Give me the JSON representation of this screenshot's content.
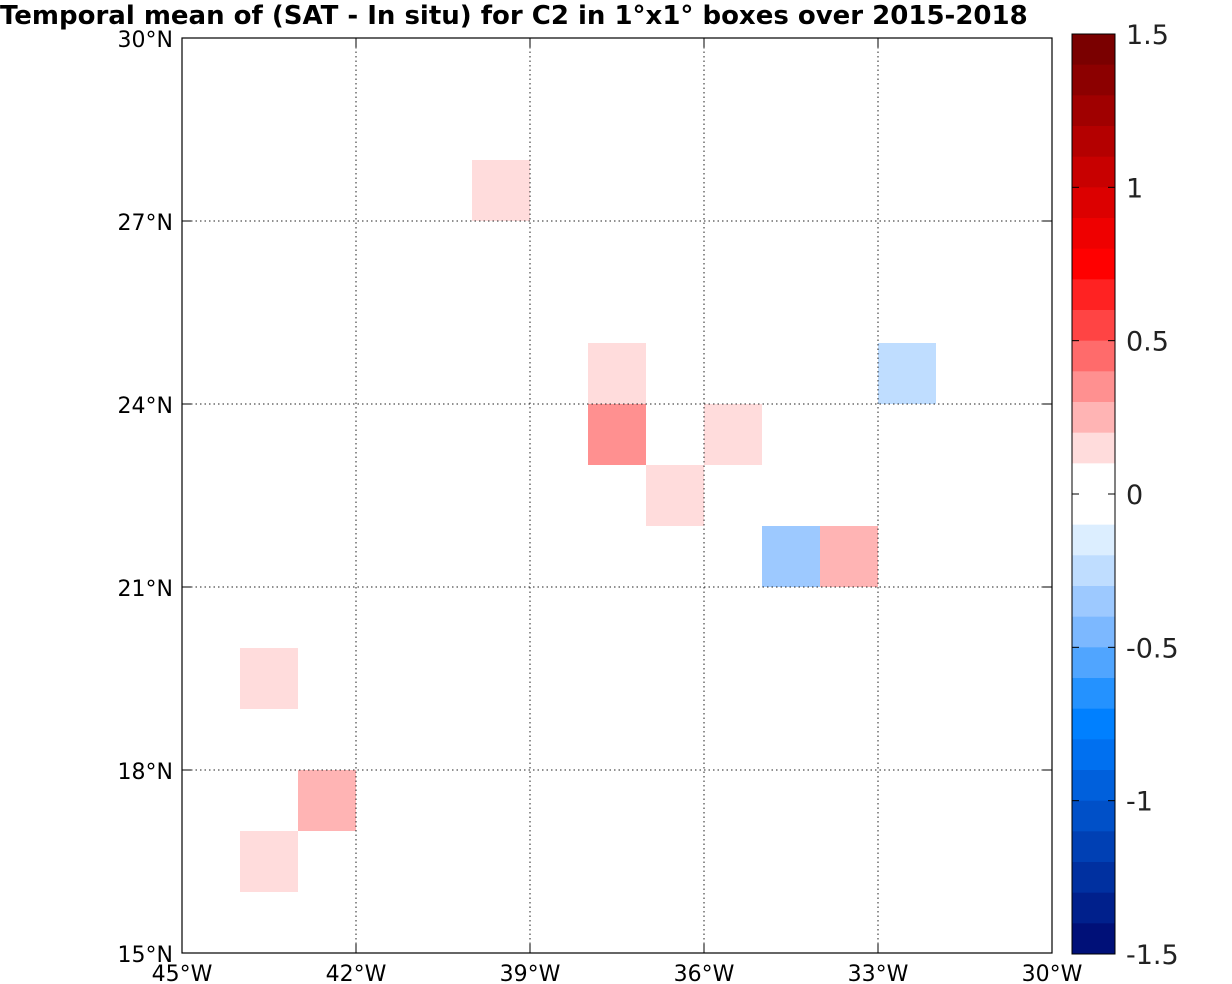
{
  "chart_data": {
    "type": "heatmap",
    "title": "Temporal mean of (SAT - In situ) for C2 in 1°x1° boxes over 2015-2018",
    "xlim": [
      -45,
      -30
    ],
    "ylim": [
      15,
      30
    ],
    "x_ticks": [
      -45,
      -42,
      -39,
      -36,
      -33,
      -30
    ],
    "x_tick_labels": [
      "45°W",
      "42°W",
      "39°W",
      "36°W",
      "33°W",
      "30°W"
    ],
    "y_ticks": [
      15,
      18,
      21,
      24,
      27,
      30
    ],
    "y_tick_labels": [
      "15°N",
      "18°N",
      "21°N",
      "24°N",
      "27°N",
      "30°N"
    ],
    "grid": true,
    "box_size_deg": 1,
    "cells": [
      {
        "lon": -40,
        "lat": 27,
        "value": 0.1
      },
      {
        "lon": -38,
        "lat": 24,
        "value": 0.1
      },
      {
        "lon": -38,
        "lat": 23,
        "value": 0.35
      },
      {
        "lon": -36,
        "lat": 23,
        "value": 0.1
      },
      {
        "lon": -37,
        "lat": 22,
        "value": 0.1
      },
      {
        "lon": -33,
        "lat": 24,
        "value": -0.25
      },
      {
        "lon": -35,
        "lat": 21,
        "value": -0.35
      },
      {
        "lon": -34,
        "lat": 21,
        "value": 0.25
      },
      {
        "lon": -44,
        "lat": 19,
        "value": 0.1
      },
      {
        "lon": -43,
        "lat": 17,
        "value": 0.25
      },
      {
        "lon": -44,
        "lat": 16,
        "value": 0.1
      }
    ],
    "colorbar": {
      "range": [
        -1.5,
        1.5
      ],
      "ticks": [
        1.5,
        1,
        0.5,
        0,
        -0.5,
        -1,
        -1.5
      ],
      "tick_labels": [
        "1.5",
        "1",
        "0.5",
        "0",
        "-0.5",
        "-1",
        "-1.5"
      ],
      "colors_top_to_bottom": [
        "#7a0000",
        "#8c0000",
        "#a00000",
        "#b40000",
        "#c80000",
        "#dc0000",
        "#ef0000",
        "#ff0000",
        "#ff2222",
        "#ff4444",
        "#ff6b6b",
        "#ff9090",
        "#ffb4b4",
        "#ffdcdc",
        "#ffffff",
        "#ffffff",
        "#dceeff",
        "#bfddff",
        "#9dc9ff",
        "#7cb8ff",
        "#50a5ff",
        "#2492ff",
        "#0080ff",
        "#0070f0",
        "#0060dc",
        "#0050c8",
        "#0040b4",
        "#0030a0",
        "#00208c",
        "#001078"
      ]
    }
  }
}
